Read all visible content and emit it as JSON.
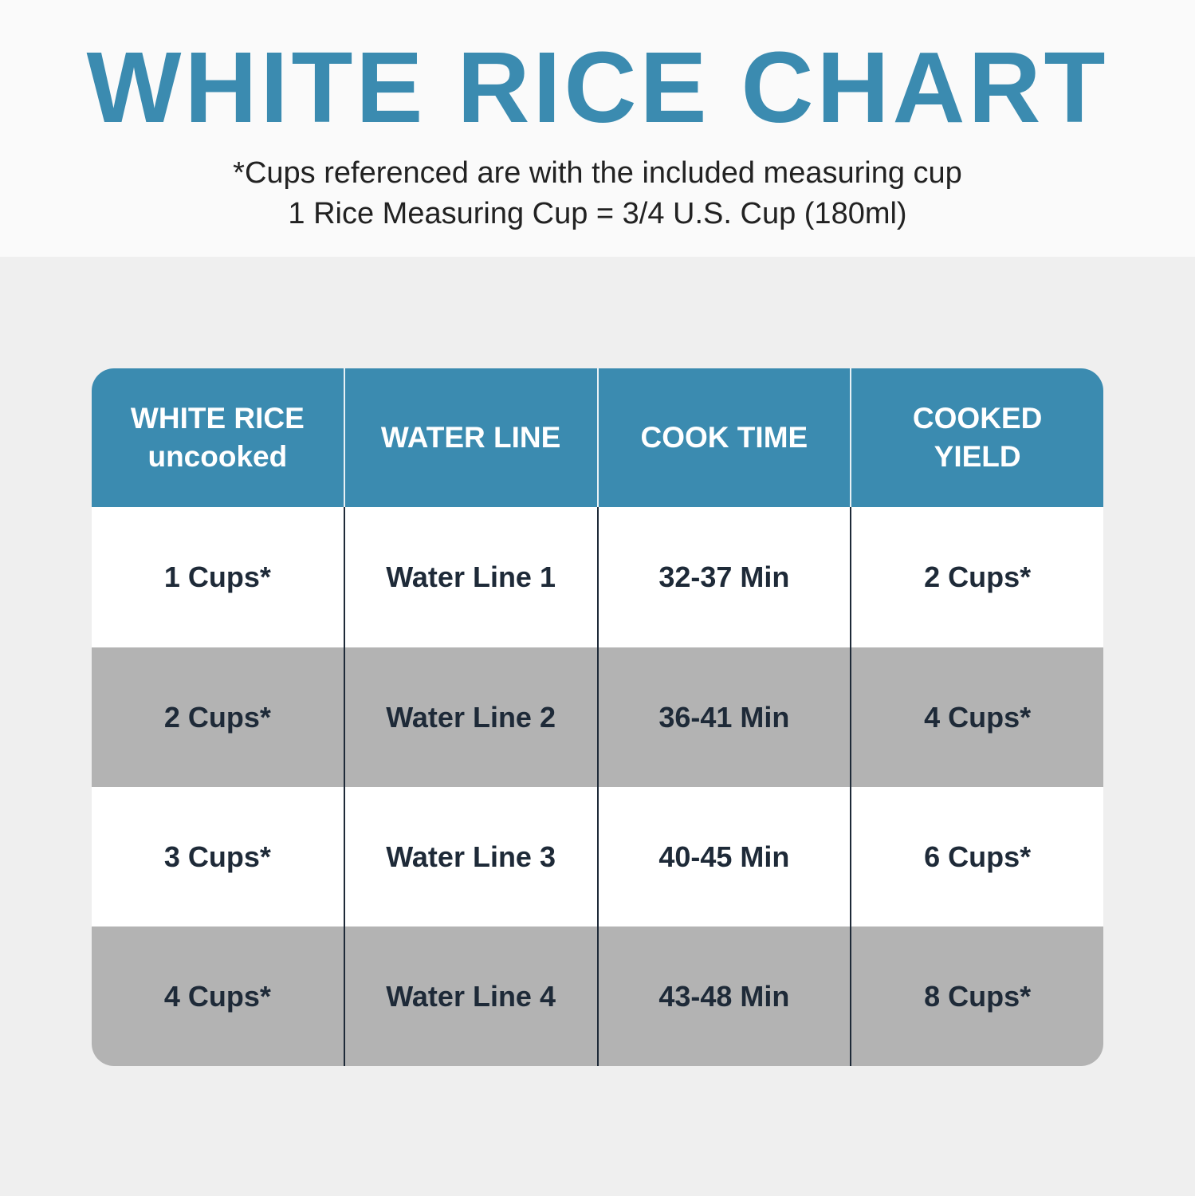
{
  "title": "WHITE RICE CHART",
  "subtitle_line1": "*Cups referenced are with the included measuring cup",
  "subtitle_line2": "1 Rice Measuring Cup = 3/4 U.S. Cup (180ml)",
  "colors": {
    "header": "#3b8bb0",
    "alt_row": "#b3b3b3",
    "text": "#1e2a38"
  },
  "table": {
    "headers": [
      {
        "line1": "WHITE RICE",
        "line2": "uncooked"
      },
      {
        "line1": "WATER LINE",
        "line2": ""
      },
      {
        "line1": "COOK TIME",
        "line2": ""
      },
      {
        "line1": "COOKED",
        "line2": "YIELD"
      }
    ],
    "rows": [
      [
        "1 Cups*",
        "Water Line 1",
        "32-37 Min",
        "2 Cups*"
      ],
      [
        "2 Cups*",
        "Water Line 2",
        "36-41 Min",
        "4 Cups*"
      ],
      [
        "3 Cups*",
        "Water Line 3",
        "40-45 Min",
        "6 Cups*"
      ],
      [
        "4 Cups*",
        "Water Line 4",
        "43-48 Min",
        "8 Cups*"
      ]
    ]
  }
}
